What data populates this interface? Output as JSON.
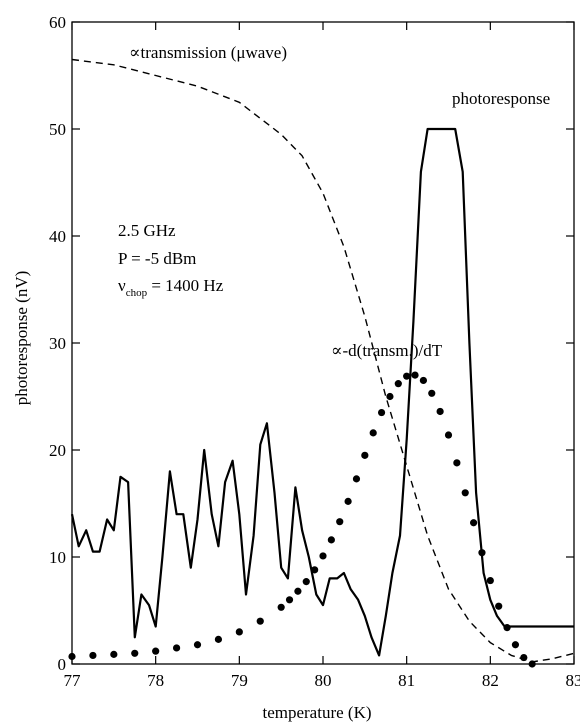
{
  "chart_data": {
    "type": "line",
    "title": "",
    "xlabel": "temperature (K)",
    "ylabel": "photoresponse (nV)",
    "xlim": [
      77,
      83
    ],
    "ylim": [
      0,
      60
    ],
    "x_ticks": [
      "77",
      "78",
      "79",
      "80",
      "81",
      "82",
      "83"
    ],
    "y_ticks": [
      "0",
      "10",
      "20",
      "30",
      "40",
      "50",
      "60"
    ],
    "grid": false,
    "series": [
      {
        "name": "photoresponse",
        "style": "solid",
        "x": [
          77.0,
          77.08,
          77.17,
          77.25,
          77.33,
          77.42,
          77.5,
          77.58,
          77.67,
          77.75,
          77.83,
          77.92,
          78.0,
          78.08,
          78.17,
          78.25,
          78.33,
          78.42,
          78.5,
          78.58,
          78.67,
          78.75,
          78.83,
          78.92,
          79.0,
          79.08,
          79.17,
          79.25,
          79.33,
          79.42,
          79.5,
          79.58,
          79.67,
          79.75,
          79.83,
          79.92,
          80.0,
          80.08,
          80.17,
          80.25,
          80.33,
          80.42,
          80.5,
          80.58,
          80.67,
          80.75,
          80.83,
          80.92,
          81.0,
          81.08,
          81.17,
          81.25,
          81.33,
          81.42,
          81.5,
          81.58,
          81.67,
          81.75,
          81.83,
          81.92,
          82.0,
          82.08,
          82.17,
          82.25,
          82.33,
          82.42,
          82.5,
          82.58,
          82.67,
          82.75,
          82.83,
          82.92,
          83.0
        ],
        "y": [
          14.0,
          11.0,
          12.5,
          10.5,
          10.5,
          13.5,
          12.5,
          17.5,
          17.0,
          2.5,
          6.5,
          5.5,
          3.5,
          10.0,
          18.0,
          14.0,
          14.0,
          9.0,
          13.5,
          20.0,
          14.0,
          11.0,
          17.0,
          19.0,
          14.0,
          6.5,
          12.0,
          20.5,
          22.5,
          16.0,
          9.0,
          8.0,
          16.5,
          12.5,
          10.0,
          6.5,
          5.5,
          8.0,
          8.0,
          8.5,
          7.0,
          6.0,
          4.5,
          2.5,
          0.8,
          4.5,
          8.5,
          12.0,
          21.0,
          32.0,
          46.0,
          50.0,
          50.0,
          50.0,
          50.0,
          50.0,
          46.0,
          30.0,
          16.0,
          8.5,
          6.0,
          4.5,
          3.5,
          3.5,
          3.5,
          3.5,
          3.5,
          3.5,
          3.5,
          3.5,
          3.5,
          3.5,
          3.5
        ]
      },
      {
        "name": "transmission (μwave)",
        "style": "dashed",
        "x": [
          77.0,
          77.5,
          78.0,
          78.5,
          79.0,
          79.5,
          79.75,
          80.0,
          80.25,
          80.5,
          80.75,
          81.0,
          81.25,
          81.5,
          81.75,
          82.0,
          82.25,
          82.5,
          82.75,
          83.0
        ],
        "y": [
          56.5,
          56.0,
          55.0,
          54.0,
          52.5,
          49.5,
          47.5,
          44.0,
          39.0,
          32.5,
          25.0,
          18.5,
          12.0,
          7.0,
          4.0,
          2.0,
          0.8,
          0.2,
          0.5,
          1.0
        ]
      },
      {
        "name": "-d(transm.)/dT",
        "style": "dotted",
        "x": [
          77.0,
          77.25,
          77.5,
          77.75,
          78.0,
          78.25,
          78.5,
          78.75,
          79.0,
          79.25,
          79.5,
          79.6,
          79.7,
          79.8,
          79.9,
          80.0,
          80.1,
          80.2,
          80.3,
          80.4,
          80.5,
          80.6,
          80.7,
          80.8,
          80.9,
          81.0,
          81.1,
          81.2,
          81.3,
          81.4,
          81.5,
          81.6,
          81.7,
          81.8,
          81.9,
          82.0,
          82.1,
          82.2,
          82.3,
          82.4,
          82.5
        ],
        "y": [
          0.7,
          0.8,
          0.9,
          1.0,
          1.2,
          1.5,
          1.8,
          2.3,
          3.0,
          4.0,
          5.3,
          6.0,
          6.8,
          7.7,
          8.8,
          10.1,
          11.6,
          13.3,
          15.2,
          17.3,
          19.5,
          21.6,
          23.5,
          25.0,
          26.2,
          26.9,
          27.0,
          26.5,
          25.3,
          23.6,
          21.4,
          18.8,
          16.0,
          13.2,
          10.4,
          7.8,
          5.4,
          3.4,
          1.8,
          0.6,
          0.0
        ]
      }
    ],
    "annotations": {
      "transmission": "transmission (μwave)",
      "derivative": "-d(transm.)/dT",
      "photoresponse": "photoresponse",
      "freq": "2.5 GHz",
      "power": "P = -5 dBm",
      "chop_nu": "ν",
      "chop_sub": "chop",
      "chop_rest": " = 1400 Hz",
      "prop_symbol": "∝"
    }
  }
}
